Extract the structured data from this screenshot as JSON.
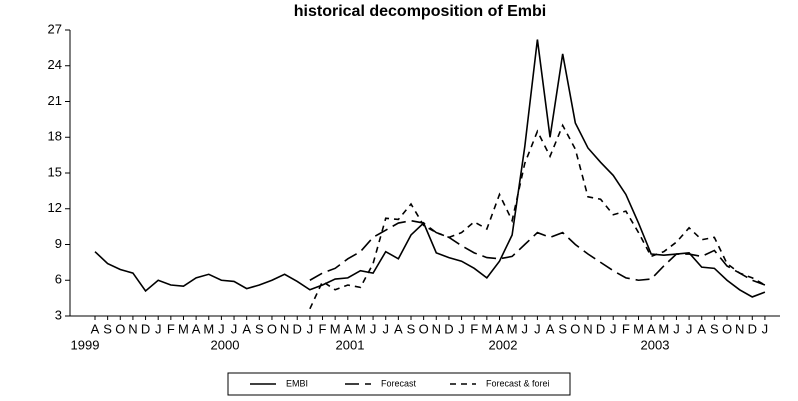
{
  "chart_data": {
    "type": "line",
    "title": "historical decomposition of Embi",
    "categories": [
      "A",
      "S",
      "O",
      "N",
      "D",
      "J",
      "F",
      "M",
      "A",
      "M",
      "J",
      "J",
      "A",
      "S",
      "O",
      "N",
      "D",
      "J",
      "F",
      "M",
      "A",
      "M",
      "J",
      "J",
      "A",
      "S",
      "O",
      "N",
      "D",
      "J",
      "F",
      "M",
      "A",
      "M",
      "J",
      "J",
      "A",
      "S",
      "O",
      "N",
      "D",
      "J",
      "F",
      "M",
      "A",
      "M",
      "J",
      "J",
      "A",
      "S",
      "O",
      "N",
      "D",
      "J"
    ],
    "year_labels": [
      "1999",
      "2000",
      "2001",
      "2002",
      "2003"
    ],
    "ylim": [
      3,
      27
    ],
    "yticks": [
      3,
      6,
      9,
      12,
      15,
      18,
      21,
      24,
      27
    ],
    "series": [
      {
        "name": "EMBI",
        "color": "#000000",
        "line_style": "solid",
        "values": [
          8.4,
          7.4,
          6.9,
          6.6,
          5.1,
          6.0,
          5.6,
          5.5,
          6.2,
          6.5,
          6.0,
          5.9,
          5.3,
          5.6,
          6.0,
          6.5,
          5.9,
          5.2,
          5.6,
          6.1,
          6.2,
          6.8,
          6.6,
          8.4,
          7.8,
          9.8,
          10.8,
          8.3,
          7.9,
          7.6,
          7.0,
          6.2,
          7.6,
          9.8,
          17.2,
          26.2,
          18.0,
          25.0,
          19.2,
          17.1,
          15.9,
          14.8,
          13.2,
          10.8,
          8.2,
          8.1,
          8.2,
          8.3,
          7.1,
          7.0,
          6.0,
          5.2,
          4.6,
          5.0
        ]
      },
      {
        "name": "Forecast",
        "color": "#000000",
        "line_style": "long-dash",
        "values": [
          null,
          null,
          null,
          null,
          null,
          null,
          null,
          null,
          null,
          null,
          null,
          null,
          null,
          null,
          null,
          null,
          null,
          6.0,
          6.6,
          7.0,
          7.8,
          8.4,
          9.6,
          10.2,
          10.8,
          11.0,
          10.8,
          10.0,
          9.6,
          8.9,
          8.3,
          7.9,
          7.8,
          8.0,
          9.0,
          10.0,
          9.6,
          10.0,
          9.0,
          8.2,
          7.5,
          6.8,
          6.2,
          6.0,
          6.1,
          7.2,
          8.2,
          8.2,
          8.0,
          8.5,
          7.2,
          6.6,
          6.0,
          5.6
        ]
      },
      {
        "name": "Forecast & forei",
        "color": "#000000",
        "line_style": "dash",
        "values": [
          null,
          null,
          null,
          null,
          null,
          null,
          null,
          null,
          null,
          null,
          null,
          null,
          null,
          null,
          null,
          null,
          null,
          3.6,
          5.9,
          5.2,
          5.6,
          5.4,
          7.4,
          11.2,
          11.1,
          12.4,
          10.6,
          10.0,
          9.6,
          10.0,
          10.9,
          10.3,
          13.2,
          11.0,
          15.8,
          18.5,
          16.4,
          19.0,
          17.0,
          13.0,
          12.8,
          11.5,
          11.8,
          10.0,
          8.0,
          8.4,
          9.2,
          10.4,
          9.4,
          9.6,
          7.4,
          6.6,
          6.2,
          5.6
        ]
      }
    ]
  }
}
